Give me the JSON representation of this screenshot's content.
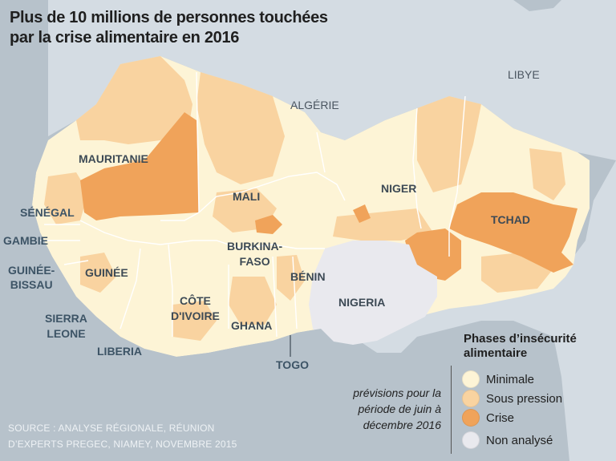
{
  "title_line1": "Plus de 10 millions de personnes touchées",
  "title_line2": "par la crise alimentaire en 2016",
  "neighbors": {
    "algeria": "ALGÉRIE",
    "libya": "LIBYE"
  },
  "countries": {
    "mauritania": "MAURITANIE",
    "mali": "MALI",
    "niger": "NIGER",
    "chad": "TCHAD",
    "senegal": "SÉNÉGAL",
    "gambia": "GAMBIE",
    "guinea_bissau_1": "GUINÉE-",
    "guinea_bissau_2": "BISSAU",
    "guinea": "GUINÉE",
    "burkina_1": "BURKINA-",
    "burkina_2": "FASO",
    "benin": "BÉNIN",
    "nigeria": "NIGERIA",
    "sierra_leone_1": "SIERRA",
    "sierra_leone_2": "LEONE",
    "cote_ivoire_1": "CÔTE",
    "cote_ivoire_2": "D'IVOIRE",
    "ghana": "GHANA",
    "liberia": "LIBERIA",
    "togo": "TOGO"
  },
  "legend": {
    "title_line1": "Phases d’insécurité",
    "title_line2": "alimentaire",
    "items": [
      {
        "label": "Minimale",
        "color": "#fdf4d6"
      },
      {
        "label": "Sous pression",
        "color": "#f9d3a0"
      },
      {
        "label": "Crise",
        "color": "#f0a35a"
      },
      {
        "label": "Non analysé",
        "color": "#e9e9ee"
      }
    ]
  },
  "note_line1": "prévisions pour la",
  "note_line2": "période de juin à",
  "note_line3": "décembre 2016",
  "source_line1": "SOURCE : ANALYSE RÉGIONALE, RÉUNION",
  "source_line2": "D’EXPERTS PREGEC, NIAMEY, NOVEMBRE 2015",
  "colors": {
    "sea": "#b7c2cb",
    "outside_land": "#d4dce3",
    "minimal": "#fdf4d6",
    "stressed": "#f9d3a0",
    "crisis": "#f0a35a",
    "not_analysed": "#e9e9ee"
  }
}
